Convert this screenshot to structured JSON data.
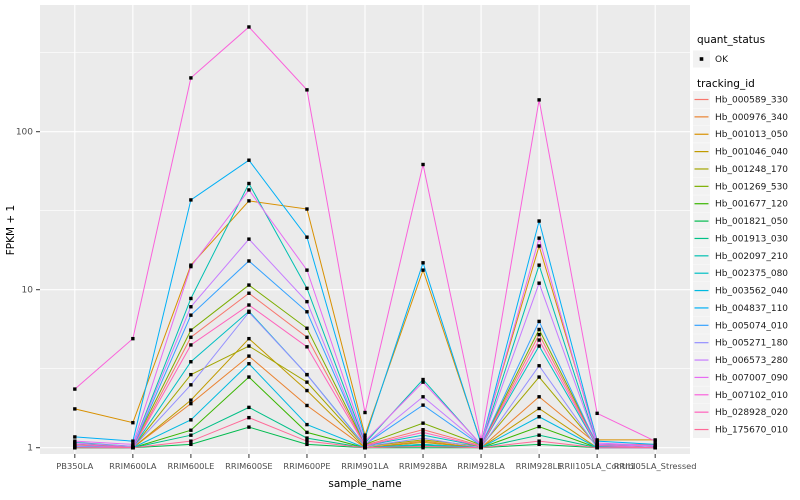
{
  "figure": {
    "background": "#FFFFFF",
    "panel_background": "#EBEBEB",
    "grid_color": "#FFFFFF",
    "axis_text_color": "#4D4D4D",
    "axis_tick_color": "#333333",
    "title_color": "#000000",
    "point_color": "#000000",
    "legend_key_background": "#F2F2F2"
  },
  "chart_data": {
    "type": "line",
    "title": "",
    "xlabel": "sample_name",
    "ylabel": "FPKM + 1",
    "y_scale": "log10",
    "y_ticks": [
      1,
      10,
      100
    ],
    "y_tick_labels": [
      "1",
      "10",
      "100"
    ],
    "y_minor_ticks": [
      3.162,
      31.62,
      316.2
    ],
    "ylim": [
      0.93,
      620
    ],
    "grid": true,
    "legend_position": "right",
    "categories": [
      "PB350LA",
      "RRIM600LA",
      "RRIM600LE",
      "RRIM600SE",
      "RRIM600PE",
      "RRIM901LA",
      "RRIM928BA",
      "RRIM928LA",
      "RRIM928LE",
      "RRII105LA_Control",
      "RRII105LA_Stressed"
    ],
    "legend": {
      "quant_status_title": "quant_status",
      "quant_status_items": [
        {
          "label": "OK",
          "glyph": "black-point"
        }
      ],
      "tracking_id_title": "tracking_id"
    },
    "series": [
      {
        "name": "Hb_000589_330",
        "color": "#F8766D",
        "quant_status": "OK",
        "values": [
          1.04,
          1.0,
          5.0,
          9.5,
          5.0,
          1.04,
          1.3,
          1.03,
          5.2,
          1.04,
          1.02
        ]
      },
      {
        "name": "Hb_000976_340",
        "color": "#EA8331",
        "quant_status": "OK",
        "values": [
          1.02,
          1.0,
          1.9,
          3.8,
          1.85,
          1.0,
          1.1,
          1.0,
          2.1,
          1.05,
          1.05
        ]
      },
      {
        "name": "Hb_001013_050",
        "color": "#D89000",
        "quant_status": "OK",
        "values": [
          1.76,
          1.44,
          14.3,
          36.5,
          32.4,
          1.2,
          13.3,
          1.08,
          18.9,
          1.12,
          1.12
        ]
      },
      {
        "name": "Hb_001046_040",
        "color": "#C09B00",
        "quant_status": "OK",
        "values": [
          1.0,
          1.0,
          2.0,
          4.9,
          2.3,
          1.0,
          1.08,
          1.0,
          1.77,
          1.0,
          1.0
        ]
      },
      {
        "name": "Hb_001248_170",
        "color": "#A3A500",
        "quant_status": "OK",
        "values": [
          1.02,
          1.0,
          2.9,
          4.4,
          2.6,
          1.02,
          1.12,
          1.02,
          2.8,
          1.02,
          1.0
        ]
      },
      {
        "name": "Hb_001269_530",
        "color": "#7CAE00",
        "quant_status": "OK",
        "values": [
          1.05,
          1.02,
          5.55,
          10.7,
          5.7,
          1.05,
          1.43,
          1.04,
          5.6,
          1.05,
          1.02
        ]
      },
      {
        "name": "Hb_001677_120",
        "color": "#39B600",
        "quant_status": "OK",
        "values": [
          1.0,
          1.0,
          1.29,
          2.8,
          1.25,
          1.0,
          1.05,
          1.0,
          1.36,
          1.0,
          1.0
        ]
      },
      {
        "name": "Hb_001821_050",
        "color": "#00BB4E",
        "quant_status": "OK",
        "values": [
          1.0,
          1.0,
          1.05,
          1.35,
          1.05,
          1.0,
          1.0,
          1.0,
          1.05,
          1.0,
          1.0
        ]
      },
      {
        "name": "Hb_001913_030",
        "color": "#00C087",
        "quant_status": "OK",
        "values": [
          1.0,
          1.0,
          1.2,
          1.8,
          1.15,
          1.0,
          1.03,
          1.0,
          1.2,
          1.0,
          1.0
        ]
      },
      {
        "name": "Hb_002097_210",
        "color": "#00C0B2",
        "quant_status": "OK",
        "values": [
          1.08,
          1.02,
          8.8,
          47.0,
          10.2,
          1.07,
          2.7,
          1.04,
          14.3,
          1.05,
          1.02
        ]
      },
      {
        "name": "Hb_002375_080",
        "color": "#00BFC4",
        "quant_status": "OK",
        "values": [
          1.05,
          1.0,
          3.5,
          7.3,
          2.9,
          1.03,
          1.2,
          1.02,
          4.4,
          1.02,
          1.0
        ]
      },
      {
        "name": "Hb_003562_040",
        "color": "#00BAE0",
        "quant_status": "OK",
        "values": [
          1.02,
          1.0,
          1.5,
          3.4,
          1.4,
          1.0,
          1.05,
          1.0,
          1.57,
          1.0,
          1.0
        ]
      },
      {
        "name": "Hb_004837_110",
        "color": "#00B0F6",
        "quant_status": "OK",
        "values": [
          1.17,
          1.1,
          37.0,
          66.0,
          21.5,
          1.15,
          14.8,
          1.06,
          27.2,
          1.1,
          1.05
        ]
      },
      {
        "name": "Hb_005074_010",
        "color": "#35A2FF",
        "quant_status": "OK",
        "values": [
          1.05,
          1.0,
          6.9,
          15.2,
          7.25,
          1.05,
          1.86,
          1.03,
          6.3,
          1.03,
          1.0
        ]
      },
      {
        "name": "Hb_005271_180",
        "color": "#9590FF",
        "quant_status": "OK",
        "values": [
          1.02,
          1.0,
          2.5,
          7.2,
          2.9,
          1.02,
          1.15,
          1.0,
          3.3,
          1.0,
          1.0
        ]
      },
      {
        "name": "Hb_006573_280",
        "color": "#C77CFF",
        "quant_status": "OK",
        "values": [
          1.07,
          1.02,
          7.8,
          20.9,
          8.4,
          1.05,
          2.1,
          1.04,
          11.0,
          1.05,
          1.02
        ]
      },
      {
        "name": "Hb_007007_090",
        "color": "#E76BF3",
        "quant_status": "OK",
        "values": [
          1.1,
          1.05,
          14.0,
          42.8,
          13.3,
          1.1,
          2.6,
          1.05,
          21.2,
          1.07,
          1.03
        ]
      },
      {
        "name": "Hb_007102_010",
        "color": "#FA62DB",
        "quant_status": "OK",
        "values": [
          2.35,
          4.9,
          219.0,
          460.0,
          184.0,
          1.67,
          62.0,
          1.12,
          159.0,
          1.65,
          1.1
        ]
      },
      {
        "name": "Hb_028928_020",
        "color": "#FF62BC",
        "quant_status": "OK",
        "values": [
          1.05,
          1.0,
          4.47,
          8.0,
          4.35,
          1.03,
          1.25,
          1.02,
          4.8,
          1.03,
          1.0
        ]
      },
      {
        "name": "Hb_175670_010",
        "color": "#FF6A98",
        "quant_status": "OK",
        "values": [
          1.0,
          1.0,
          1.1,
          1.55,
          1.1,
          1.0,
          1.02,
          1.0,
          1.1,
          1.0,
          1.0
        ]
      }
    ]
  }
}
